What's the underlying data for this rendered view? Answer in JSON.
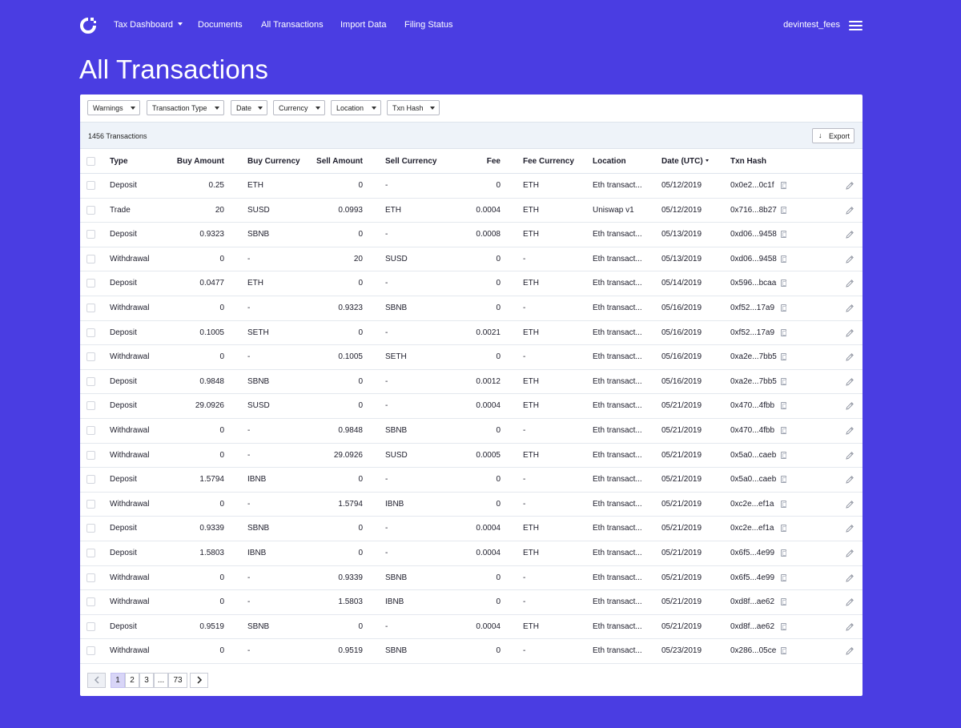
{
  "nav": {
    "links": [
      "Tax Dashboard",
      "Documents",
      "All Transactions",
      "Import Data",
      "Filing Status"
    ],
    "username": "devintest_fees"
  },
  "page_title": "All Transactions",
  "filters": [
    "Warnings",
    "Transaction Type",
    "Date",
    "Currency",
    "Location",
    "Txn Hash"
  ],
  "summary": {
    "count_text": "1456 Transactions",
    "export_label": "Export"
  },
  "columns": [
    "Type",
    "Buy Amount",
    "Buy Currency",
    "Sell Amount",
    "Sell Currency",
    "Fee",
    "Fee Currency",
    "Location",
    "Date (UTC)",
    "Txn Hash"
  ],
  "rows": [
    [
      "Deposit",
      "0.25",
      "ETH",
      "0",
      "-",
      "0",
      "ETH",
      "Eth transact...",
      "05/12/2019",
      "0x0e2...0c1f"
    ],
    [
      "Trade",
      "20",
      "SUSD",
      "0.0993",
      "ETH",
      "0.0004",
      "ETH",
      "Uniswap v1",
      "05/12/2019",
      "0x716...8b27"
    ],
    [
      "Deposit",
      "0.9323",
      "SBNB",
      "0",
      "-",
      "0.0008",
      "ETH",
      "Eth transact...",
      "05/13/2019",
      "0xd06...9458"
    ],
    [
      "Withdrawal",
      "0",
      "-",
      "20",
      "SUSD",
      "0",
      "-",
      "Eth transact...",
      "05/13/2019",
      "0xd06...9458"
    ],
    [
      "Deposit",
      "0.0477",
      "ETH",
      "0",
      "-",
      "0",
      "ETH",
      "Eth transact...",
      "05/14/2019",
      "0x596...bcaa"
    ],
    [
      "Withdrawal",
      "0",
      "-",
      "0.9323",
      "SBNB",
      "0",
      "-",
      "Eth transact...",
      "05/16/2019",
      "0xf52...17a9"
    ],
    [
      "Deposit",
      "0.1005",
      "SETH",
      "0",
      "-",
      "0.0021",
      "ETH",
      "Eth transact...",
      "05/16/2019",
      "0xf52...17a9"
    ],
    [
      "Withdrawal",
      "0",
      "-",
      "0.1005",
      "SETH",
      "0",
      "-",
      "Eth transact...",
      "05/16/2019",
      "0xa2e...7bb5"
    ],
    [
      "Deposit",
      "0.9848",
      "SBNB",
      "0",
      "-",
      "0.0012",
      "ETH",
      "Eth transact...",
      "05/16/2019",
      "0xa2e...7bb5"
    ],
    [
      "Deposit",
      "29.0926",
      "SUSD",
      "0",
      "-",
      "0.0004",
      "ETH",
      "Eth transact...",
      "05/21/2019",
      "0x470...4fbb"
    ],
    [
      "Withdrawal",
      "0",
      "-",
      "0.9848",
      "SBNB",
      "0",
      "-",
      "Eth transact...",
      "05/21/2019",
      "0x470...4fbb"
    ],
    [
      "Withdrawal",
      "0",
      "-",
      "29.0926",
      "SUSD",
      "0.0005",
      "ETH",
      "Eth transact...",
      "05/21/2019",
      "0x5a0...caeb"
    ],
    [
      "Deposit",
      "1.5794",
      "IBNB",
      "0",
      "-",
      "0",
      "-",
      "Eth transact...",
      "05/21/2019",
      "0x5a0...caeb"
    ],
    [
      "Withdrawal",
      "0",
      "-",
      "1.5794",
      "IBNB",
      "0",
      "-",
      "Eth transact...",
      "05/21/2019",
      "0xc2e...ef1a"
    ],
    [
      "Deposit",
      "0.9339",
      "SBNB",
      "0",
      "-",
      "0.0004",
      "ETH",
      "Eth transact...",
      "05/21/2019",
      "0xc2e...ef1a"
    ],
    [
      "Deposit",
      "1.5803",
      "IBNB",
      "0",
      "-",
      "0.0004",
      "ETH",
      "Eth transact...",
      "05/21/2019",
      "0x6f5...4e99"
    ],
    [
      "Withdrawal",
      "0",
      "-",
      "0.9339",
      "SBNB",
      "0",
      "-",
      "Eth transact...",
      "05/21/2019",
      "0x6f5...4e99"
    ],
    [
      "Withdrawal",
      "0",
      "-",
      "1.5803",
      "IBNB",
      "0",
      "-",
      "Eth transact...",
      "05/21/2019",
      "0xd8f...ae62"
    ],
    [
      "Deposit",
      "0.9519",
      "SBNB",
      "0",
      "-",
      "0.0004",
      "ETH",
      "Eth transact...",
      "05/21/2019",
      "0xd8f...ae62"
    ],
    [
      "Withdrawal",
      "0",
      "-",
      "0.9519",
      "SBNB",
      "0",
      "-",
      "Eth transact...",
      "05/23/2019",
      "0x286...05ce"
    ]
  ],
  "pagination": {
    "pages": [
      "1",
      "2",
      "3",
      "...",
      "73"
    ],
    "current": "1"
  },
  "colors": {
    "background": "#4a3de2",
    "card": "#ffffff",
    "summary_bar": "#eef3f9",
    "active_page": "#d8d5f7"
  }
}
